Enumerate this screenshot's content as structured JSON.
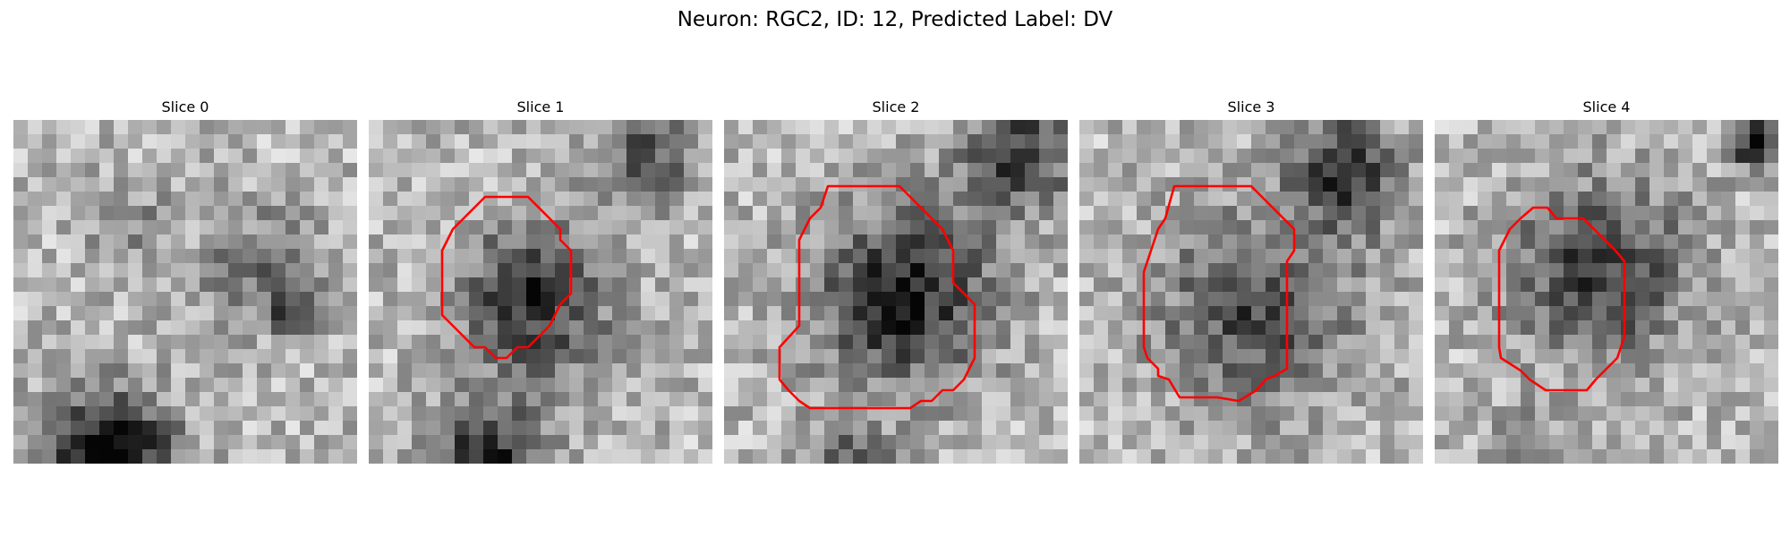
{
  "figure": {
    "title": "Neuron: RGC2, ID: 12, Predicted Label: DV"
  },
  "colors": {
    "contour": "#ff0000",
    "background": "#ffffff"
  },
  "panels": [
    {
      "title": "Slice 0",
      "has_contour": false
    },
    {
      "title": "Slice 1",
      "has_contour": true
    },
    {
      "title": "Slice 2",
      "has_contour": true
    },
    {
      "title": "Slice 3",
      "has_contour": true
    },
    {
      "title": "Slice 4",
      "has_contour": true
    }
  ]
}
